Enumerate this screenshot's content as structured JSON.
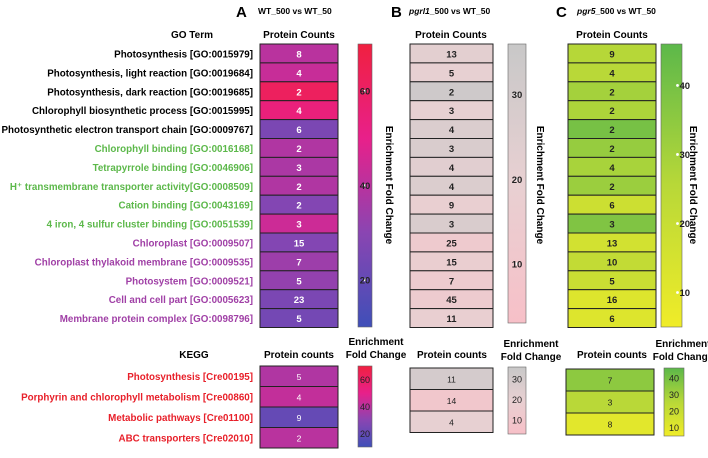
{
  "panels": [
    {
      "letter": "A",
      "title": "WT_500 vs WT_50",
      "title_italic": ""
    },
    {
      "letter": "B",
      "title": "_500 vs WT_50",
      "title_italic": "pgrl1"
    },
    {
      "letter": "C",
      "title": "_500 vs WT_50",
      "title_italic": "pgr5"
    }
  ],
  "headers": {
    "go_term": "GO Term",
    "protein_counts": "Protein Counts",
    "kegg": "KEGG",
    "protein_counts_lower": "Protein counts",
    "enrichment_line1": "Enrichment",
    "enrichment_line2": "Fold Change",
    "enrichment_fold_change": "Enrichment Fold Change"
  },
  "colors": {
    "bp": "#000000",
    "mf": "#5cb84a",
    "cc": "#a040a6",
    "kegg": "#e8202a",
    "scale_A": [
      "#3f4fb8",
      "#8a45b2",
      "#e8208a",
      "#f02040"
    ],
    "scale_B": [
      "#f7c0c8",
      "#e8d0d2",
      "#c8c8c8"
    ],
    "scale_C": [
      "#f0ec28",
      "#b8d838",
      "#5cb84a"
    ]
  },
  "chart_data": {
    "type": "heatmap",
    "go_terms": [
      {
        "label": "Photosynthesis [GO:0015979]",
        "category": "bp"
      },
      {
        "label": "Photosynthesis, light reaction [GO:0019684]",
        "category": "bp"
      },
      {
        "label": "Photosynthesis, dark reaction [GO:0019685]",
        "category": "bp"
      },
      {
        "label": "Chlorophyll biosynthetic process [GO:0015995]",
        "category": "bp"
      },
      {
        "label": "Photosynthetic electron transport chain [GO:0009767]",
        "category": "bp"
      },
      {
        "label": "Chlorophyll binding [GO:0016168]",
        "category": "mf"
      },
      {
        "label": "Tetrapyrrole binding [GO:0046906]",
        "category": "mf"
      },
      {
        "label": "H⁺ transmembrane transporter activity[GO:0008509]",
        "category": "mf"
      },
      {
        "label": "Cation binding [GO:0043169]",
        "category": "mf"
      },
      {
        "label": "4 iron, 4 sulfur cluster binding [GO:0051539]",
        "category": "mf"
      },
      {
        "label": "Chloroplast [GO:0009507]",
        "category": "cc"
      },
      {
        "label": "Chloroplast thylakoid membrane [GO:0009535]",
        "category": "cc"
      },
      {
        "label": "Photosystem [GO:0009521]",
        "category": "cc"
      },
      {
        "label": "Cell and cell part [GO:0005623]",
        "category": "cc"
      },
      {
        "label": "Membrane protein complex [GO:0098796]",
        "category": "cc"
      }
    ],
    "go_counts": {
      "A": [
        8,
        4,
        2,
        4,
        6,
        2,
        3,
        2,
        2,
        3,
        15,
        7,
        5,
        23,
        5
      ],
      "B": [
        13,
        5,
        2,
        3,
        4,
        3,
        4,
        4,
        9,
        3,
        25,
        15,
        7,
        45,
        11
      ],
      "C": [
        9,
        4,
        2,
        2,
        2,
        2,
        4,
        2,
        6,
        3,
        13,
        10,
        5,
        16,
        6
      ]
    },
    "go_fold_change": {
      "A": [
        40,
        43,
        62,
        54,
        26,
        38,
        37,
        38,
        28,
        44,
        28,
        34,
        32,
        26,
        24
      ],
      "B": [
        22,
        20,
        33,
        20,
        26,
        27,
        23,
        26,
        18,
        27,
        13,
        17,
        14,
        14,
        18
      ],
      "C": [
        26,
        25,
        30,
        28,
        40,
        33,
        29,
        32,
        18,
        38,
        16,
        22,
        19,
        12,
        12
      ]
    },
    "go_colorbars": {
      "A": {
        "ticks": [
          20,
          40,
          60
        ],
        "range": [
          10,
          70
        ]
      },
      "B": {
        "ticks": [
          10,
          20,
          30
        ],
        "range": [
          3,
          36
        ]
      },
      "C": {
        "ticks": [
          10,
          20,
          30,
          40
        ],
        "range": [
          5,
          46
        ]
      }
    },
    "kegg_terms": [
      "Photosynthesis [Cre00195]",
      "Porphyrin and chlorophyll metabolism [Cre00860]",
      "Metabolic pathways [Cre01100]",
      "ABC transporters [Cre02010]"
    ],
    "kegg_counts": {
      "A": [
        5,
        4,
        9,
        2
      ],
      "B": [
        11,
        14,
        4
      ],
      "C": [
        7,
        3,
        8
      ]
    },
    "kegg_fold_change": {
      "A": [
        38,
        42,
        20,
        40
      ],
      "B": [
        30,
        10,
        20
      ],
      "C": [
        35,
        25,
        10
      ]
    },
    "kegg_colorbars": {
      "A": {
        "ticks": [
          20,
          40,
          60
        ],
        "range": [
          10,
          70
        ]
      },
      "B": {
        "ticks": [
          10,
          20,
          30
        ],
        "range": [
          3,
          36
        ]
      },
      "C": {
        "ticks": [
          10,
          20,
          30,
          40
        ],
        "range": [
          5,
          46
        ]
      }
    }
  }
}
